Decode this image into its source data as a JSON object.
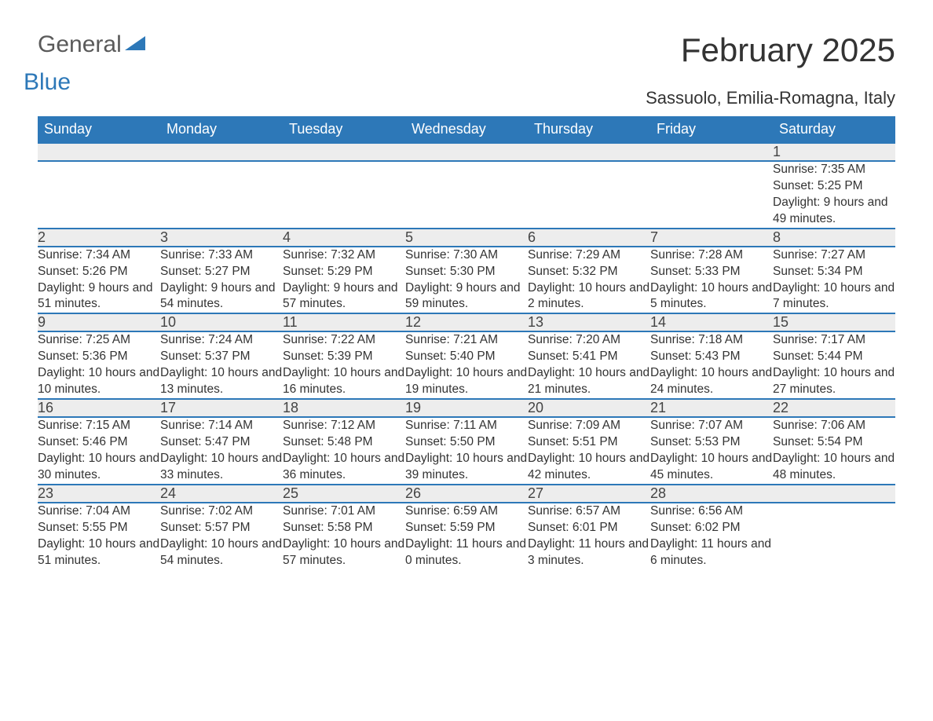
{
  "logo": {
    "text1": "General",
    "text2": "Blue"
  },
  "title": "February 2025",
  "subtitle": "Sassuolo, Emilia-Romagna, Italy",
  "colors": {
    "header_bg": "#2d78b8",
    "header_fg": "#ffffff",
    "daynum_bg": "#ededed",
    "border": "#2d78b8",
    "logo_gray": "#5a5a5a",
    "logo_blue": "#2d78b8"
  },
  "weekdays": [
    "Sunday",
    "Monday",
    "Tuesday",
    "Wednesday",
    "Thursday",
    "Friday",
    "Saturday"
  ],
  "weeks": [
    [
      null,
      null,
      null,
      null,
      null,
      null,
      {
        "d": "1",
        "sr": "Sunrise: 7:35 AM",
        "ss": "Sunset: 5:25 PM",
        "dl": "Daylight: 9 hours and 49 minutes."
      }
    ],
    [
      {
        "d": "2",
        "sr": "Sunrise: 7:34 AM",
        "ss": "Sunset: 5:26 PM",
        "dl": "Daylight: 9 hours and 51 minutes."
      },
      {
        "d": "3",
        "sr": "Sunrise: 7:33 AM",
        "ss": "Sunset: 5:27 PM",
        "dl": "Daylight: 9 hours and 54 minutes."
      },
      {
        "d": "4",
        "sr": "Sunrise: 7:32 AM",
        "ss": "Sunset: 5:29 PM",
        "dl": "Daylight: 9 hours and 57 minutes."
      },
      {
        "d": "5",
        "sr": "Sunrise: 7:30 AM",
        "ss": "Sunset: 5:30 PM",
        "dl": "Daylight: 9 hours and 59 minutes."
      },
      {
        "d": "6",
        "sr": "Sunrise: 7:29 AM",
        "ss": "Sunset: 5:32 PM",
        "dl": "Daylight: 10 hours and 2 minutes."
      },
      {
        "d": "7",
        "sr": "Sunrise: 7:28 AM",
        "ss": "Sunset: 5:33 PM",
        "dl": "Daylight: 10 hours and 5 minutes."
      },
      {
        "d": "8",
        "sr": "Sunrise: 7:27 AM",
        "ss": "Sunset: 5:34 PM",
        "dl": "Daylight: 10 hours and 7 minutes."
      }
    ],
    [
      {
        "d": "9",
        "sr": "Sunrise: 7:25 AM",
        "ss": "Sunset: 5:36 PM",
        "dl": "Daylight: 10 hours and 10 minutes."
      },
      {
        "d": "10",
        "sr": "Sunrise: 7:24 AM",
        "ss": "Sunset: 5:37 PM",
        "dl": "Daylight: 10 hours and 13 minutes."
      },
      {
        "d": "11",
        "sr": "Sunrise: 7:22 AM",
        "ss": "Sunset: 5:39 PM",
        "dl": "Daylight: 10 hours and 16 minutes."
      },
      {
        "d": "12",
        "sr": "Sunrise: 7:21 AM",
        "ss": "Sunset: 5:40 PM",
        "dl": "Daylight: 10 hours and 19 minutes."
      },
      {
        "d": "13",
        "sr": "Sunrise: 7:20 AM",
        "ss": "Sunset: 5:41 PM",
        "dl": "Daylight: 10 hours and 21 minutes."
      },
      {
        "d": "14",
        "sr": "Sunrise: 7:18 AM",
        "ss": "Sunset: 5:43 PM",
        "dl": "Daylight: 10 hours and 24 minutes."
      },
      {
        "d": "15",
        "sr": "Sunrise: 7:17 AM",
        "ss": "Sunset: 5:44 PM",
        "dl": "Daylight: 10 hours and 27 minutes."
      }
    ],
    [
      {
        "d": "16",
        "sr": "Sunrise: 7:15 AM",
        "ss": "Sunset: 5:46 PM",
        "dl": "Daylight: 10 hours and 30 minutes."
      },
      {
        "d": "17",
        "sr": "Sunrise: 7:14 AM",
        "ss": "Sunset: 5:47 PM",
        "dl": "Daylight: 10 hours and 33 minutes."
      },
      {
        "d": "18",
        "sr": "Sunrise: 7:12 AM",
        "ss": "Sunset: 5:48 PM",
        "dl": "Daylight: 10 hours and 36 minutes."
      },
      {
        "d": "19",
        "sr": "Sunrise: 7:11 AM",
        "ss": "Sunset: 5:50 PM",
        "dl": "Daylight: 10 hours and 39 minutes."
      },
      {
        "d": "20",
        "sr": "Sunrise: 7:09 AM",
        "ss": "Sunset: 5:51 PM",
        "dl": "Daylight: 10 hours and 42 minutes."
      },
      {
        "d": "21",
        "sr": "Sunrise: 7:07 AM",
        "ss": "Sunset: 5:53 PM",
        "dl": "Daylight: 10 hours and 45 minutes."
      },
      {
        "d": "22",
        "sr": "Sunrise: 7:06 AM",
        "ss": "Sunset: 5:54 PM",
        "dl": "Daylight: 10 hours and 48 minutes."
      }
    ],
    [
      {
        "d": "23",
        "sr": "Sunrise: 7:04 AM",
        "ss": "Sunset: 5:55 PM",
        "dl": "Daylight: 10 hours and 51 minutes."
      },
      {
        "d": "24",
        "sr": "Sunrise: 7:02 AM",
        "ss": "Sunset: 5:57 PM",
        "dl": "Daylight: 10 hours and 54 minutes."
      },
      {
        "d": "25",
        "sr": "Sunrise: 7:01 AM",
        "ss": "Sunset: 5:58 PM",
        "dl": "Daylight: 10 hours and 57 minutes."
      },
      {
        "d": "26",
        "sr": "Sunrise: 6:59 AM",
        "ss": "Sunset: 5:59 PM",
        "dl": "Daylight: 11 hours and 0 minutes."
      },
      {
        "d": "27",
        "sr": "Sunrise: 6:57 AM",
        "ss": "Sunset: 6:01 PM",
        "dl": "Daylight: 11 hours and 3 minutes."
      },
      {
        "d": "28",
        "sr": "Sunrise: 6:56 AM",
        "ss": "Sunset: 6:02 PM",
        "dl": "Daylight: 11 hours and 6 minutes."
      },
      null
    ]
  ]
}
